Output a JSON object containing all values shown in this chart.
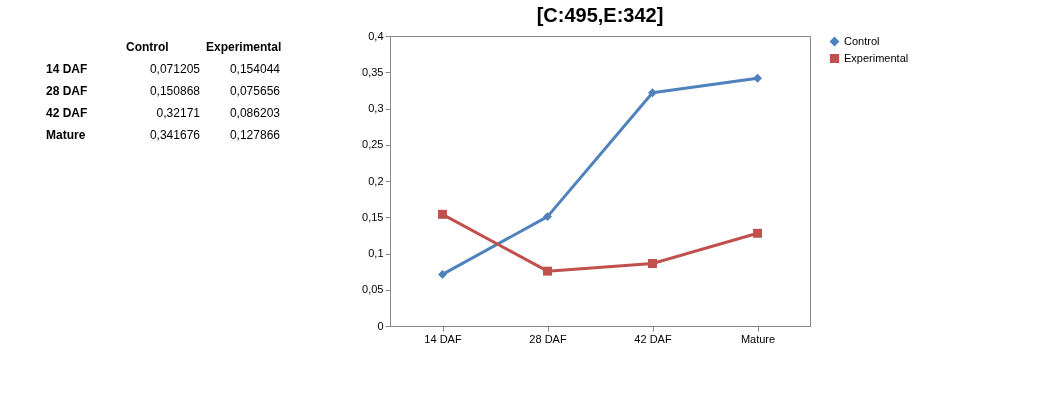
{
  "chart_data": {
    "type": "line",
    "title": "[C:495,E:342]",
    "categories": [
      "14 DAF",
      "28 DAF",
      "42 DAF",
      "Mature"
    ],
    "series": [
      {
        "name": "Control",
        "color": "#4f81bd",
        "marker": "diamond",
        "values": [
          0.071205,
          0.150868,
          0.32171,
          0.341676
        ]
      },
      {
        "name": "Experimental",
        "color": "#c0504d",
        "marker": "square",
        "values": [
          0.154044,
          0.075656,
          0.086203,
          0.127866
        ]
      }
    ],
    "annotations": [
      "0,071205",
      "0,154044",
      "0,150868",
      "0,075656",
      "0,32171",
      "0,086203",
      "0,341676",
      "0,127866"
    ],
    "ylim": [
      0,
      0.4
    ],
    "yticks": [
      0,
      {
        "value": 0.05,
        "label": "0,05"
      },
      {
        "value": 0.1,
        "label": "0,1"
      },
      {
        "value": 0.15,
        "label": "0,15"
      },
      {
        "value": 0.2,
        "label": "0,2"
      },
      {
        "value": 0.25,
        "label": "0,25"
      },
      {
        "value": 0.3,
        "label": "0,3"
      },
      {
        "value": 0.35,
        "label": "0,35"
      },
      {
        "value": 0.4,
        "label": "0,4"
      }
    ],
    "grid": false,
    "legend": "right",
    "line_style": "solid"
  }
}
